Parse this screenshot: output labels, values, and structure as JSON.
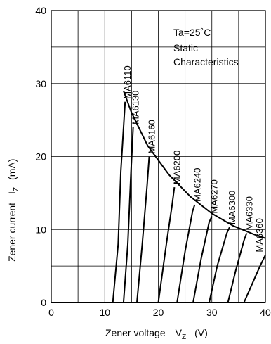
{
  "chart_data": {
    "type": "line",
    "x_range": [
      0,
      40
    ],
    "y_range": [
      0,
      40
    ],
    "x_ticks": [
      "0",
      "10",
      "20",
      "30",
      "40"
    ],
    "y_ticks": [
      "0",
      "10",
      "20",
      "30",
      "40"
    ],
    "grid": true,
    "grid_step_x": 5,
    "grid_step_y": 5,
    "xlabel": {
      "main": "Zener voltage",
      "symbol": "V",
      "subscript": "Z",
      "unit": "(V)"
    },
    "ylabel": {
      "main": "Zener current",
      "symbol": "I",
      "subscript": "Z",
      "unit": "(mA)"
    },
    "annotation": [
      "Ta=25˚C",
      "Static",
      "Characteristics"
    ],
    "limit_curve": [
      [
        13.5,
        29
      ],
      [
        15,
        26
      ],
      [
        18,
        21.5
      ],
      [
        22,
        17.5
      ],
      [
        26,
        14.5
      ],
      [
        30,
        12.2
      ],
      [
        34,
        10.5
      ],
      [
        38,
        9.3
      ],
      [
        40,
        8.8
      ]
    ],
    "series": [
      {
        "name": "MA6110",
        "points": [
          [
            11.5,
            0
          ],
          [
            12.5,
            8
          ],
          [
            13.0,
            18
          ],
          [
            13.8,
            27.5
          ]
        ]
      },
      {
        "name": "MA6130",
        "points": [
          [
            13.5,
            0
          ],
          [
            14.3,
            8
          ],
          [
            14.9,
            18
          ],
          [
            15.3,
            24.0
          ]
        ]
      },
      {
        "name": "MA6160",
        "points": [
          [
            16.0,
            0
          ],
          [
            17.0,
            8
          ],
          [
            17.9,
            16
          ],
          [
            18.3,
            20.0
          ]
        ]
      },
      {
        "name": "MA6200",
        "points": [
          [
            20.0,
            0
          ],
          [
            21.5,
            8
          ],
          [
            22.6,
            13.5
          ],
          [
            23.0,
            15.8
          ]
        ]
      },
      {
        "name": "MA6240",
        "points": [
          [
            23.5,
            0
          ],
          [
            25.0,
            7
          ],
          [
            26.4,
            12.5
          ],
          [
            26.8,
            13.4
          ]
        ]
      },
      {
        "name": "MA6270",
        "points": [
          [
            26.5,
            0
          ],
          [
            28.0,
            6
          ],
          [
            29.5,
            11
          ],
          [
            30.0,
            11.8
          ]
        ]
      },
      {
        "name": "MA6300",
        "points": [
          [
            29.5,
            0
          ],
          [
            31.0,
            5
          ],
          [
            32.8,
            9.5
          ],
          [
            33.3,
            10.3
          ]
        ]
      },
      {
        "name": "MA6330",
        "points": [
          [
            33.0,
            0
          ],
          [
            34.5,
            4.5
          ],
          [
            36.0,
            8.5
          ],
          [
            36.5,
            9.5
          ]
        ]
      },
      {
        "name": "MA6360",
        "points": [
          [
            36.0,
            0
          ],
          [
            37.5,
            2.5
          ],
          [
            39.0,
            5.0
          ],
          [
            40.0,
            6.5
          ]
        ]
      }
    ]
  }
}
